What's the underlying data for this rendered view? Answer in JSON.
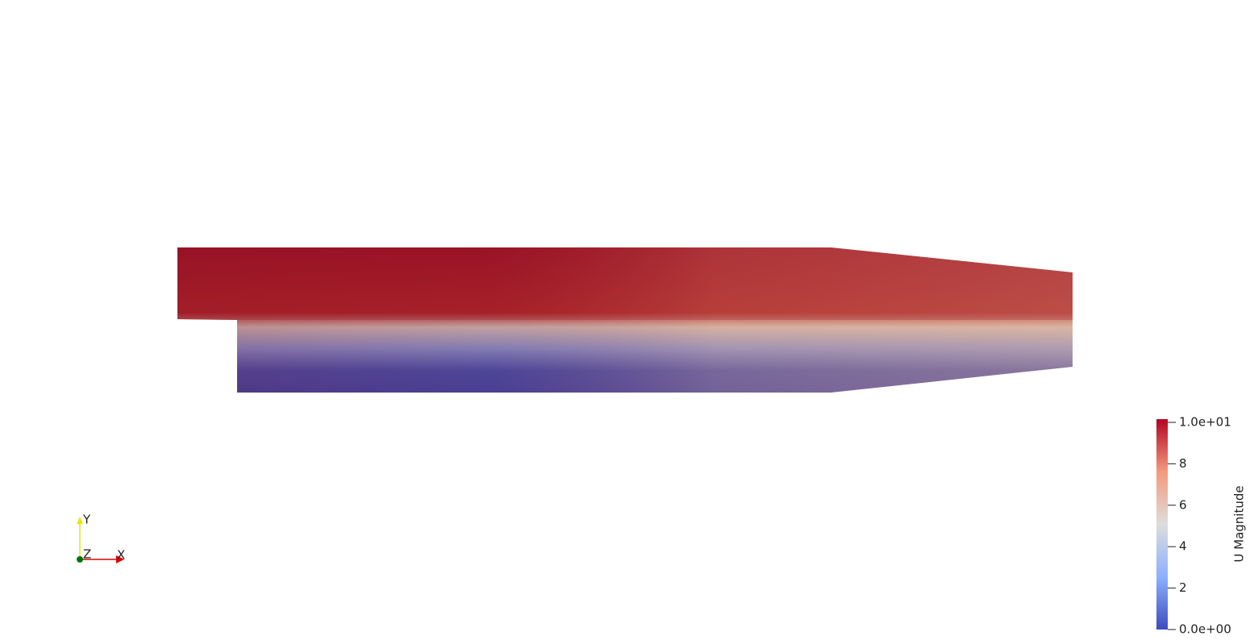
{
  "colorbar": {
    "title": "U Magnitude",
    "range": [
      0,
      10
    ],
    "ticks": [
      {
        "value": 0,
        "label": "0.0e+00"
      },
      2,
      4,
      6,
      8,
      {
        "value": 10,
        "label": "1.0e+01"
      }
    ]
  },
  "axes": {
    "x": "X",
    "y": "Y",
    "z": "Z"
  }
}
